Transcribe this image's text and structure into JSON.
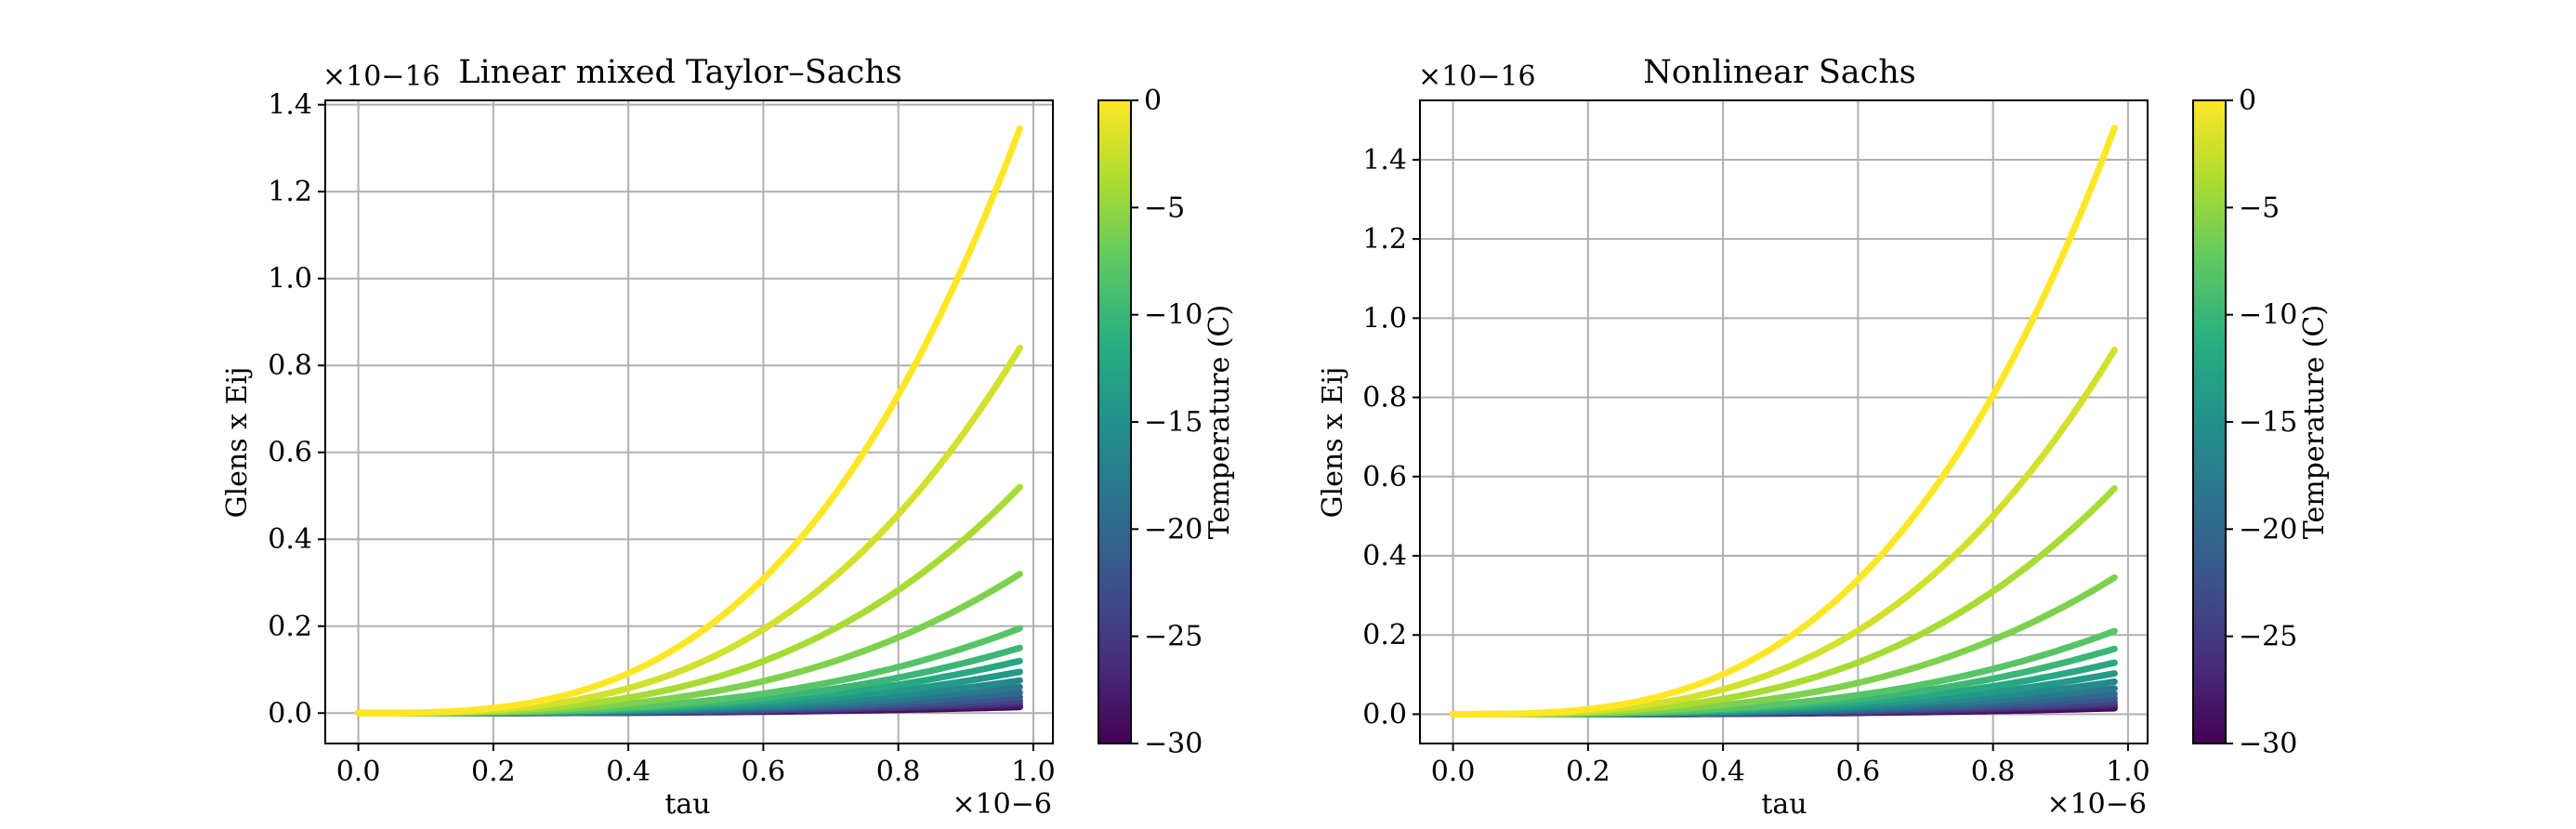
{
  "chart_data": [
    {
      "type": "line",
      "title": "Linear mixed Taylor–Sachs",
      "xlabel": "tau",
      "ylabel": "Glens x Eij",
      "x_offset_text": "×10−6",
      "y_offset_text": "×10−16",
      "xlim": [
        -0.049,
        1.029
      ],
      "ylim": [
        -0.07,
        1.41
      ],
      "x_ticks": [
        "0.0",
        "0.2",
        "0.4",
        "0.6",
        "0.8",
        "1.0"
      ],
      "y_ticks": [
        "0.0",
        "0.2",
        "0.4",
        "0.6",
        "0.8",
        "1.0",
        "1.2",
        "1.4"
      ],
      "grid": true,
      "curve_shape": "y = end_value * (x / 0.98)^3",
      "x_end": 0.98,
      "series": [
        {
          "temperature": 0,
          "end_value": 1.345
        },
        {
          "temperature": -2,
          "end_value": 0.84
        },
        {
          "temperature": -4,
          "end_value": 0.52
        },
        {
          "temperature": -6,
          "end_value": 0.32
        },
        {
          "temperature": -8,
          "end_value": 0.195
        },
        {
          "temperature": -10,
          "end_value": 0.15
        },
        {
          "temperature": -12,
          "end_value": 0.12
        },
        {
          "temperature": -14,
          "end_value": 0.095
        },
        {
          "temperature": -16,
          "end_value": 0.075
        },
        {
          "temperature": -18,
          "end_value": 0.06
        },
        {
          "temperature": -20,
          "end_value": 0.047
        },
        {
          "temperature": -22,
          "end_value": 0.037
        },
        {
          "temperature": -24,
          "end_value": 0.029
        },
        {
          "temperature": -26,
          "end_value": 0.023
        },
        {
          "temperature": -28,
          "end_value": 0.018
        },
        {
          "temperature": -30,
          "end_value": 0.014
        }
      ],
      "colorbar": {
        "label": "Temperature (C)",
        "range": [
          -30,
          0
        ],
        "ticks": [
          "0",
          "−5",
          "−10",
          "−15",
          "−20",
          "−25",
          "−30"
        ],
        "colormap": "viridis"
      }
    },
    {
      "type": "line",
      "title": "Nonlinear Sachs",
      "xlabel": "tau",
      "ylabel": "Glens x Eij",
      "x_offset_text": "×10−6",
      "y_offset_text": "×10−16",
      "xlim": [
        -0.049,
        1.029
      ],
      "ylim": [
        -0.074,
        1.55
      ],
      "x_ticks": [
        "0.0",
        "0.2",
        "0.4",
        "0.6",
        "0.8",
        "1.0"
      ],
      "y_ticks": [
        "0.0",
        "0.2",
        "0.4",
        "0.6",
        "0.8",
        "1.0",
        "1.2",
        "1.4"
      ],
      "grid": true,
      "curve_shape": "y = end_value * (x / 0.98)^3",
      "x_end": 0.98,
      "series": [
        {
          "temperature": 0,
          "end_value": 1.48
        },
        {
          "temperature": -2,
          "end_value": 0.92
        },
        {
          "temperature": -4,
          "end_value": 0.57
        },
        {
          "temperature": -6,
          "end_value": 0.345
        },
        {
          "temperature": -8,
          "end_value": 0.21
        },
        {
          "temperature": -10,
          "end_value": 0.165
        },
        {
          "temperature": -12,
          "end_value": 0.13
        },
        {
          "temperature": -14,
          "end_value": 0.103
        },
        {
          "temperature": -16,
          "end_value": 0.082
        },
        {
          "temperature": -18,
          "end_value": 0.065
        },
        {
          "temperature": -20,
          "end_value": 0.051
        },
        {
          "temperature": -22,
          "end_value": 0.04
        },
        {
          "temperature": -24,
          "end_value": 0.031
        },
        {
          "temperature": -26,
          "end_value": 0.025
        },
        {
          "temperature": -28,
          "end_value": 0.019
        },
        {
          "temperature": -30,
          "end_value": 0.015
        }
      ],
      "colorbar": {
        "label": "Temperature (C)",
        "range": [
          -30,
          0
        ],
        "ticks": [
          "0",
          "−5",
          "−10",
          "−15",
          "−20",
          "−25",
          "−30"
        ],
        "colormap": "viridis"
      }
    }
  ]
}
